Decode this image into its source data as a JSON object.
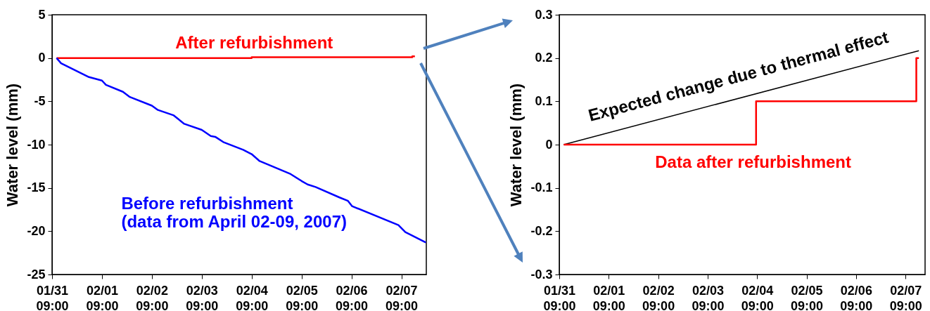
{
  "chart_data": [
    {
      "type": "line",
      "ylabel": "Water level (mm)",
      "xlim": [
        "--01-31T09:00",
        "--02-07T21:00"
      ],
      "ylim": [
        -25,
        5
      ],
      "xticks": [
        {
          "value": "--01-31T09:00",
          "label": "01/31 09:00"
        },
        {
          "value": "--02-01T09:00",
          "label": "02/01 09:00"
        },
        {
          "value": "--02-02T09:00",
          "label": "02/02 09:00"
        },
        {
          "value": "--02-03T09:00",
          "label": "02/03 09:00"
        },
        {
          "value": "--02-04T09:00",
          "label": "02/04 09:00"
        },
        {
          "value": "--02-05T09:00",
          "label": "02/05 09:00"
        },
        {
          "value": "--02-06T09:00",
          "label": "02/06 09:00"
        },
        {
          "value": "--02-07T09:00",
          "label": "02/07 09:00"
        }
      ],
      "yticks": [
        5,
        0,
        -5,
        -10,
        -15,
        -20,
        -25
      ],
      "series": [
        {
          "name": "After refurbishment",
          "type": "step",
          "color": "#ff0000",
          "x": [
            "--01-31T11:10",
            "--02-04T09:00",
            "--02-07T14:15",
            "--02-07T15:30"
          ],
          "values": [
            0,
            0.1,
            0.2,
            0.2
          ]
        },
        {
          "name": "Before refurbishment",
          "type": "line",
          "color": "#0000ff",
          "x": [
            "--01-31T11:10",
            "--01-31T13:20",
            "--02-01T02:45",
            "--02-01T09:00",
            "--02-01T10:55",
            "--02-01T19:05",
            "--02-01T22:25",
            "--02-02T09:00",
            "--02-02T11:55",
            "--02-02T19:20",
            "--02-03T00:35",
            "--02-03T09:00",
            "--02-03T13:20",
            "--02-03T15:30",
            "--02-03T19:20",
            "--02-04T04:55",
            "--02-04T09:00",
            "--02-04T12:50",
            "--02-05T03:45",
            "--02-05T09:00",
            "--02-05T11:55",
            "--02-05T15:45",
            "--02-06T03:15",
            "--02-06T07:20",
            "--02-06T09:15",
            "--02-07T07:35",
            "--02-07T10:55",
            "--02-07T20:45"
          ],
          "values": [
            0,
            -0.6,
            -2.2,
            -2.6,
            -3.1,
            -3.9,
            -4.5,
            -5.5,
            -6.0,
            -6.6,
            -7.6,
            -8.3,
            -9.0,
            -9.1,
            -9.7,
            -10.6,
            -11.1,
            -11.9,
            -13.4,
            -14.2,
            -14.6,
            -14.9,
            -16.1,
            -16.5,
            -17.1,
            -19.3,
            -20.1,
            -21.3
          ]
        }
      ],
      "annotations": [
        "(data from April 02-09, 2007)"
      ]
    },
    {
      "type": "line",
      "ylabel": "Water level (mm)",
      "xlim": [
        "--01-31T09:00",
        "--02-07T18:30"
      ],
      "ylim": [
        -0.3,
        0.3
      ],
      "xticks": [
        {
          "value": "--01-31T09:00",
          "label": "01/31 09:00"
        },
        {
          "value": "--02-01T09:00",
          "label": "02/01 09:00"
        },
        {
          "value": "--02-02T09:00",
          "label": "02/02 09:00"
        },
        {
          "value": "--02-03T09:00",
          "label": "02/03 09:00"
        },
        {
          "value": "--02-04T09:00",
          "label": "02/04 09:00"
        },
        {
          "value": "--02-05T09:00",
          "label": "02/05 09:00"
        },
        {
          "value": "--02-06T09:00",
          "label": "02/06 09:00"
        },
        {
          "value": "--02-07T09:00",
          "label": "02/07 09:00"
        }
      ],
      "yticks": [
        0.3,
        0.2,
        0.1,
        0,
        -0.1,
        -0.2,
        -0.3
      ],
      "series": [
        {
          "name": "Expected change due to thermal effect",
          "type": "line",
          "color": "#000000",
          "x": [
            "--01-31T11:10",
            "--02-07T15:30"
          ],
          "values": [
            0,
            0.217
          ]
        },
        {
          "name": "Data after refurbishment",
          "type": "step",
          "color": "#ff0000",
          "x": [
            "--01-31T11:10",
            "--02-04T08:30",
            "--02-07T14:15",
            "--02-07T15:30"
          ],
          "values": [
            0,
            0.1,
            0.2,
            0.2
          ]
        }
      ]
    }
  ]
}
